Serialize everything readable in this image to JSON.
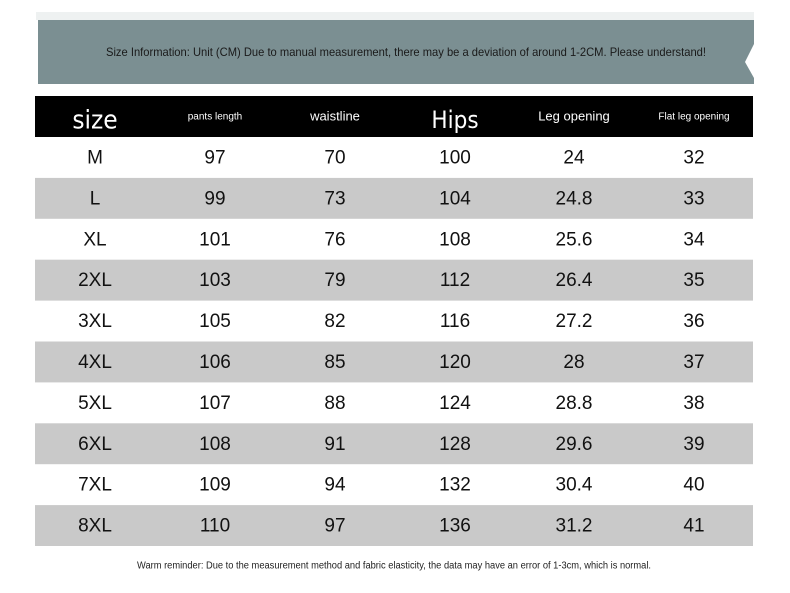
{
  "banner": "Size Information: Unit (CM) Due to manual measurement, there may be a deviation of around 1-2CM. Please understand!",
  "table": {
    "columns": [
      "size",
      "pants length",
      "waistline",
      "Hips",
      "Leg opening",
      "Flat leg opening"
    ],
    "rows": [
      [
        "M",
        97,
        70,
        100,
        24,
        32
      ],
      [
        "L",
        99,
        73,
        104,
        24.8,
        33
      ],
      [
        "XL",
        101,
        76,
        108,
        25.6,
        34
      ],
      [
        "2XL",
        103,
        79,
        112,
        26.4,
        35
      ],
      [
        "3XL",
        105,
        82,
        116,
        27.2,
        36
      ],
      [
        "4XL",
        106,
        85,
        120,
        28,
        37
      ],
      [
        "5XL",
        107,
        88,
        124,
        28.8,
        38
      ],
      [
        "6XL",
        108,
        91,
        128,
        29.6,
        39
      ],
      [
        "7XL",
        109,
        94,
        132,
        30.4,
        40
      ],
      [
        "8XL",
        110,
        97,
        136,
        31.2,
        41
      ]
    ]
  },
  "footer": "Warm reminder: Due to the measurement method and fabric elasticity, the data may have an error of 1-3cm, which is normal."
}
